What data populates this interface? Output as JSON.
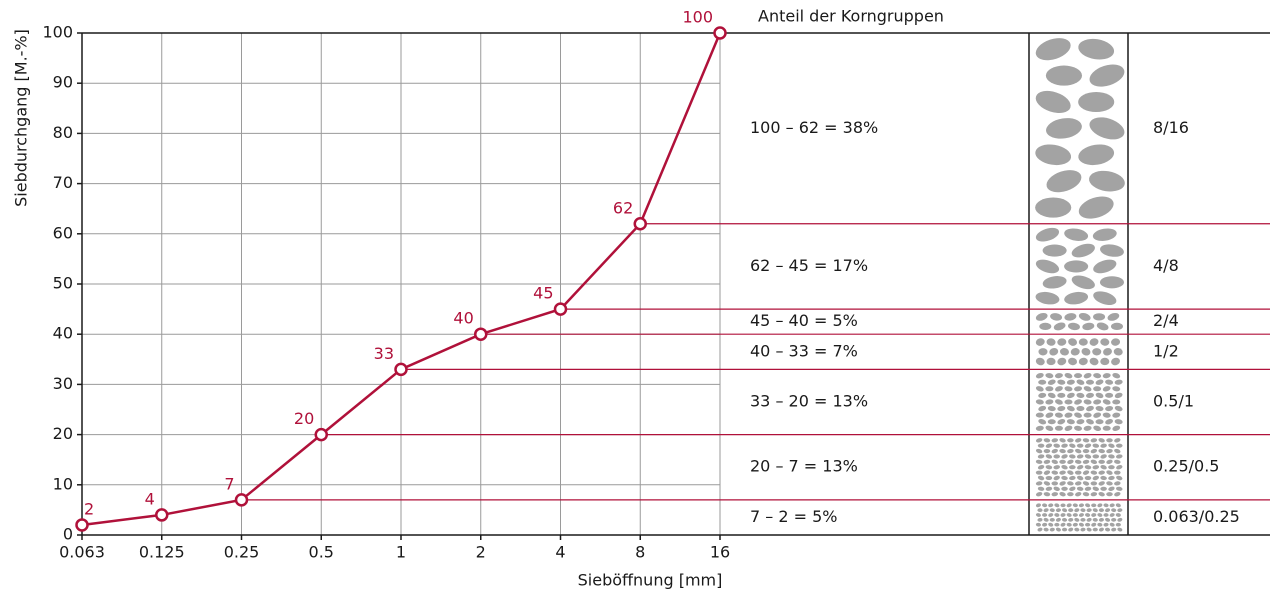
{
  "chart_data": {
    "type": "line",
    "x_label": "Sieböffnung [mm]",
    "y_label": "Siebdurchgang [M.-%]",
    "categories": [
      "0.063",
      "0.125",
      "0.25",
      "0.5",
      "1",
      "2",
      "4",
      "8",
      "16"
    ],
    "values": [
      2,
      4,
      7,
      20,
      33,
      40,
      45,
      62,
      100
    ],
    "color": "#b0113a",
    "ylim": [
      0,
      100
    ],
    "yticks": [
      0,
      10,
      20,
      30,
      40,
      50,
      60,
      70,
      80,
      90,
      100
    ],
    "grid": true,
    "groups_title": "Anteil der Korngruppen",
    "groups": [
      {
        "share": "100 – 62 = 38%",
        "group": "8/16"
      },
      {
        "share": "62 – 45 = 17%",
        "group": "4/8"
      },
      {
        "share": "45 – 40 = 5%",
        "group": "2/4"
      },
      {
        "share": "40 – 33 = 7%",
        "group": "1/2"
      },
      {
        "share": "33 – 20 = 13%",
        "group": "0.5/1"
      },
      {
        "share": "20 – 7 = 13%",
        "group": "0.25/0.5"
      },
      {
        "share": "7 – 2 = 5%",
        "group": "0.063/0.25"
      }
    ]
  }
}
